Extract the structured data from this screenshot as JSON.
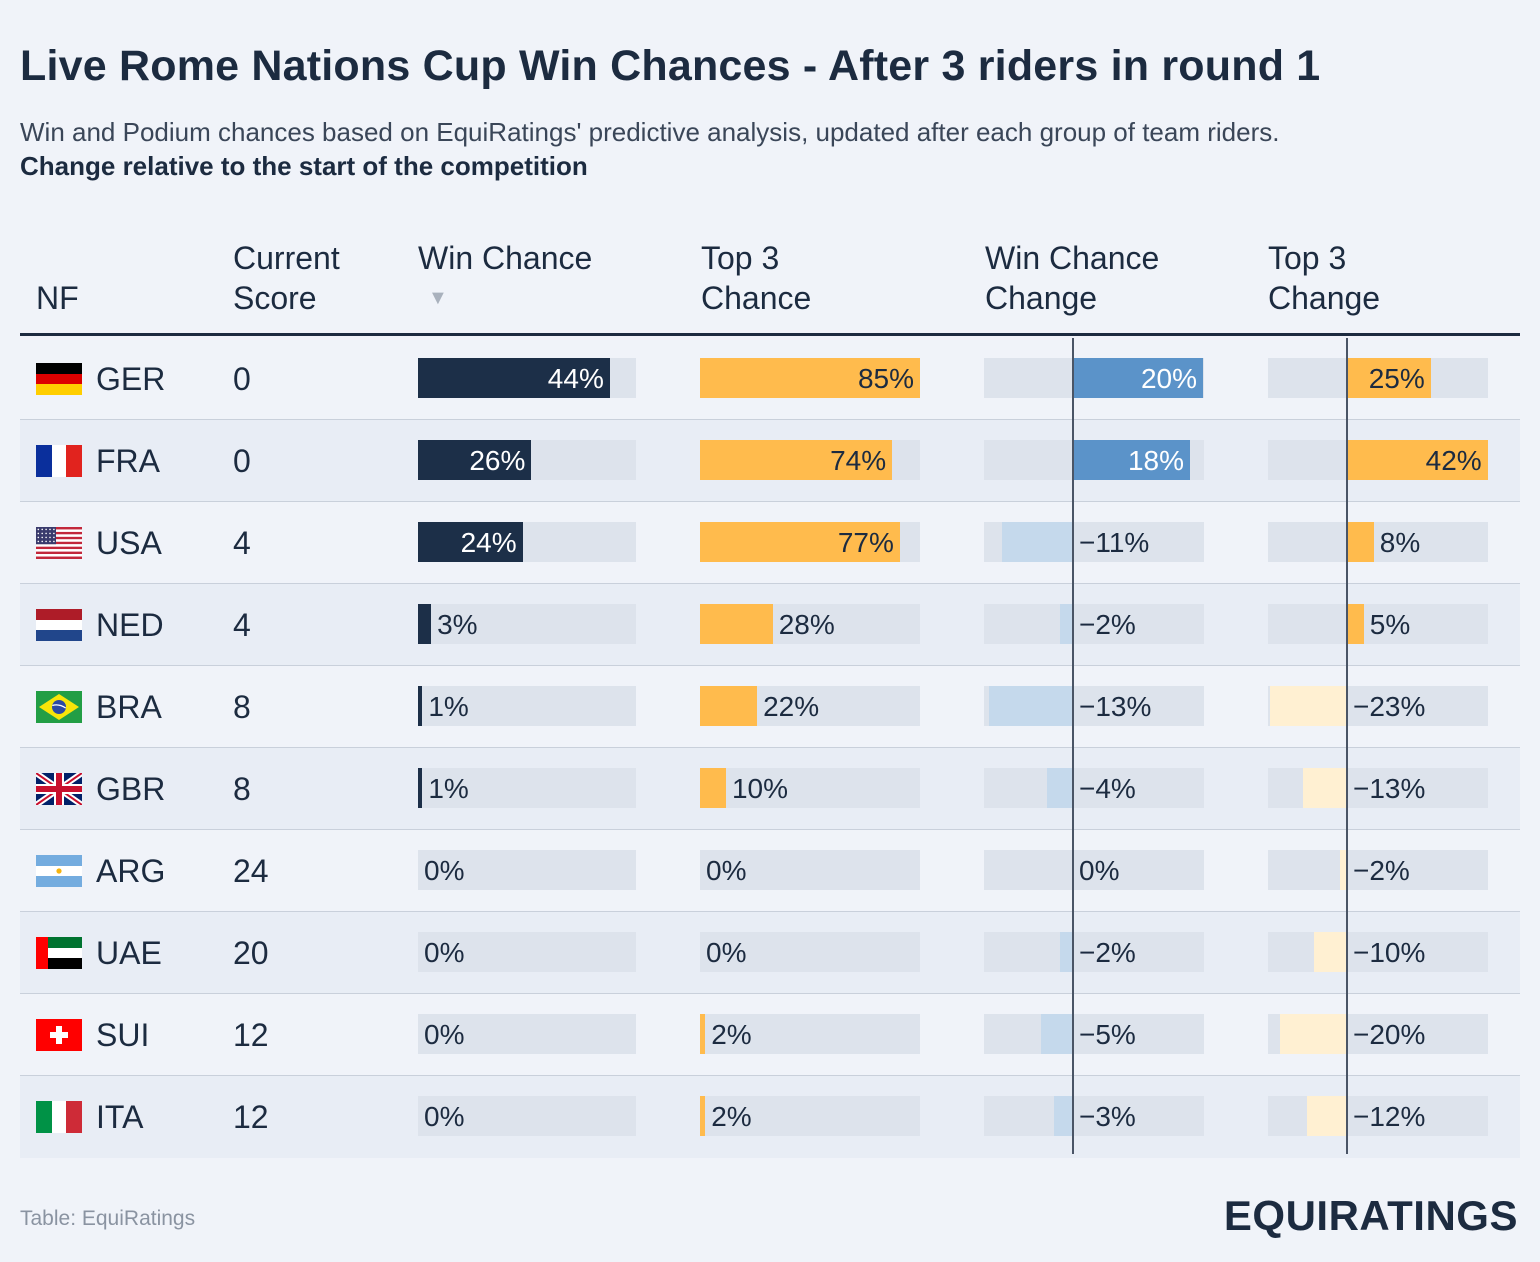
{
  "title": "Live Rome Nations Cup Win Chances - After 3 riders in round 1",
  "subtitle": "Win and Podium chances based on EquiRatings' predictive analysis, updated after each group of team riders.",
  "subtitle_bold": "Change relative to the start of the competition",
  "headers": {
    "nf": "NF",
    "score_1": "Current",
    "score_2": "Score",
    "win_1": "Win Chance",
    "win_sort": "▼",
    "top3_1": "Top 3",
    "top3_2": "Chance",
    "winchg_1": "Win Chance",
    "winchg_2": "Change",
    "top3chg_1": "Top 3",
    "top3chg_2": "Change"
  },
  "source": "Table: EquiRatings",
  "brand": "EQUIRATINGS",
  "colors": {
    "win": "#1c2f48",
    "top3": "#ffbb4d",
    "win_change_pos": "#5b93c9",
    "win_change_neg": "#c5d9ec",
    "top3_change_pos": "#ffbb4d",
    "top3_change_neg": "#fff0d2",
    "track": "#dde3ec"
  },
  "chart_data": {
    "type": "table",
    "columns": [
      "NF",
      "Current Score",
      "Win Chance",
      "Top 3 Chance",
      "Win Chance Change",
      "Top 3 Change"
    ],
    "rows": [
      {
        "nf": "GER",
        "flag": "germany-flag",
        "score": "0",
        "win": 44,
        "win_label": "44%",
        "top3": 85,
        "top3_label": "85%",
        "win_change": 20,
        "win_change_label": "20%",
        "top3_change": 25,
        "top3_change_label": "25%"
      },
      {
        "nf": "FRA",
        "flag": "france-flag",
        "score": "0",
        "win": 26,
        "win_label": "26%",
        "top3": 74,
        "top3_label": "74%",
        "win_change": 18,
        "win_change_label": "18%",
        "top3_change": 42,
        "top3_change_label": "42%"
      },
      {
        "nf": "USA",
        "flag": "usa-flag",
        "score": "4",
        "win": 24,
        "win_label": "24%",
        "top3": 77,
        "top3_label": "77%",
        "win_change": -11,
        "win_change_label": "−11%",
        "top3_change": 8,
        "top3_change_label": "8%"
      },
      {
        "nf": "NED",
        "flag": "netherlands-flag",
        "score": "4",
        "win": 3,
        "win_label": "3%",
        "top3": 28,
        "top3_label": "28%",
        "win_change": -2,
        "win_change_label": "−2%",
        "top3_change": 5,
        "top3_change_label": "5%"
      },
      {
        "nf": "BRA",
        "flag": "brazil-flag",
        "score": "8",
        "win": 1,
        "win_label": "1%",
        "top3": 22,
        "top3_label": "22%",
        "win_change": -13,
        "win_change_label": "−13%",
        "top3_change": -23,
        "top3_change_label": "−23%"
      },
      {
        "nf": "GBR",
        "flag": "uk-flag",
        "score": "8",
        "win": 1,
        "win_label": "1%",
        "top3": 10,
        "top3_label": "10%",
        "win_change": -4,
        "win_change_label": "−4%",
        "top3_change": -13,
        "top3_change_label": "−13%"
      },
      {
        "nf": "ARG",
        "flag": "argentina-flag",
        "score": "24",
        "win": 0,
        "win_label": "0%",
        "top3": 0,
        "top3_label": "0%",
        "win_change": 0,
        "win_change_label": "0%",
        "top3_change": -2,
        "top3_change_label": "−2%"
      },
      {
        "nf": "UAE",
        "flag": "uae-flag",
        "score": "20",
        "win": 0,
        "win_label": "0%",
        "top3": 0,
        "top3_label": "0%",
        "win_change": -2,
        "win_change_label": "−2%",
        "top3_change": -10,
        "top3_change_label": "−10%"
      },
      {
        "nf": "SUI",
        "flag": "switzerland-flag",
        "score": "12",
        "win": 0,
        "win_label": "0%",
        "top3": 2,
        "top3_label": "2%",
        "win_change": -5,
        "win_change_label": "−5%",
        "top3_change": -20,
        "top3_change_label": "−20%"
      },
      {
        "nf": "ITA",
        "flag": "italy-flag",
        "score": "12",
        "win": 0,
        "win_label": "0%",
        "top3": 2,
        "top3_label": "2%",
        "win_change": -3,
        "win_change_label": "−3%",
        "top3_change": -12,
        "top3_change_label": "−12%"
      }
    ]
  }
}
